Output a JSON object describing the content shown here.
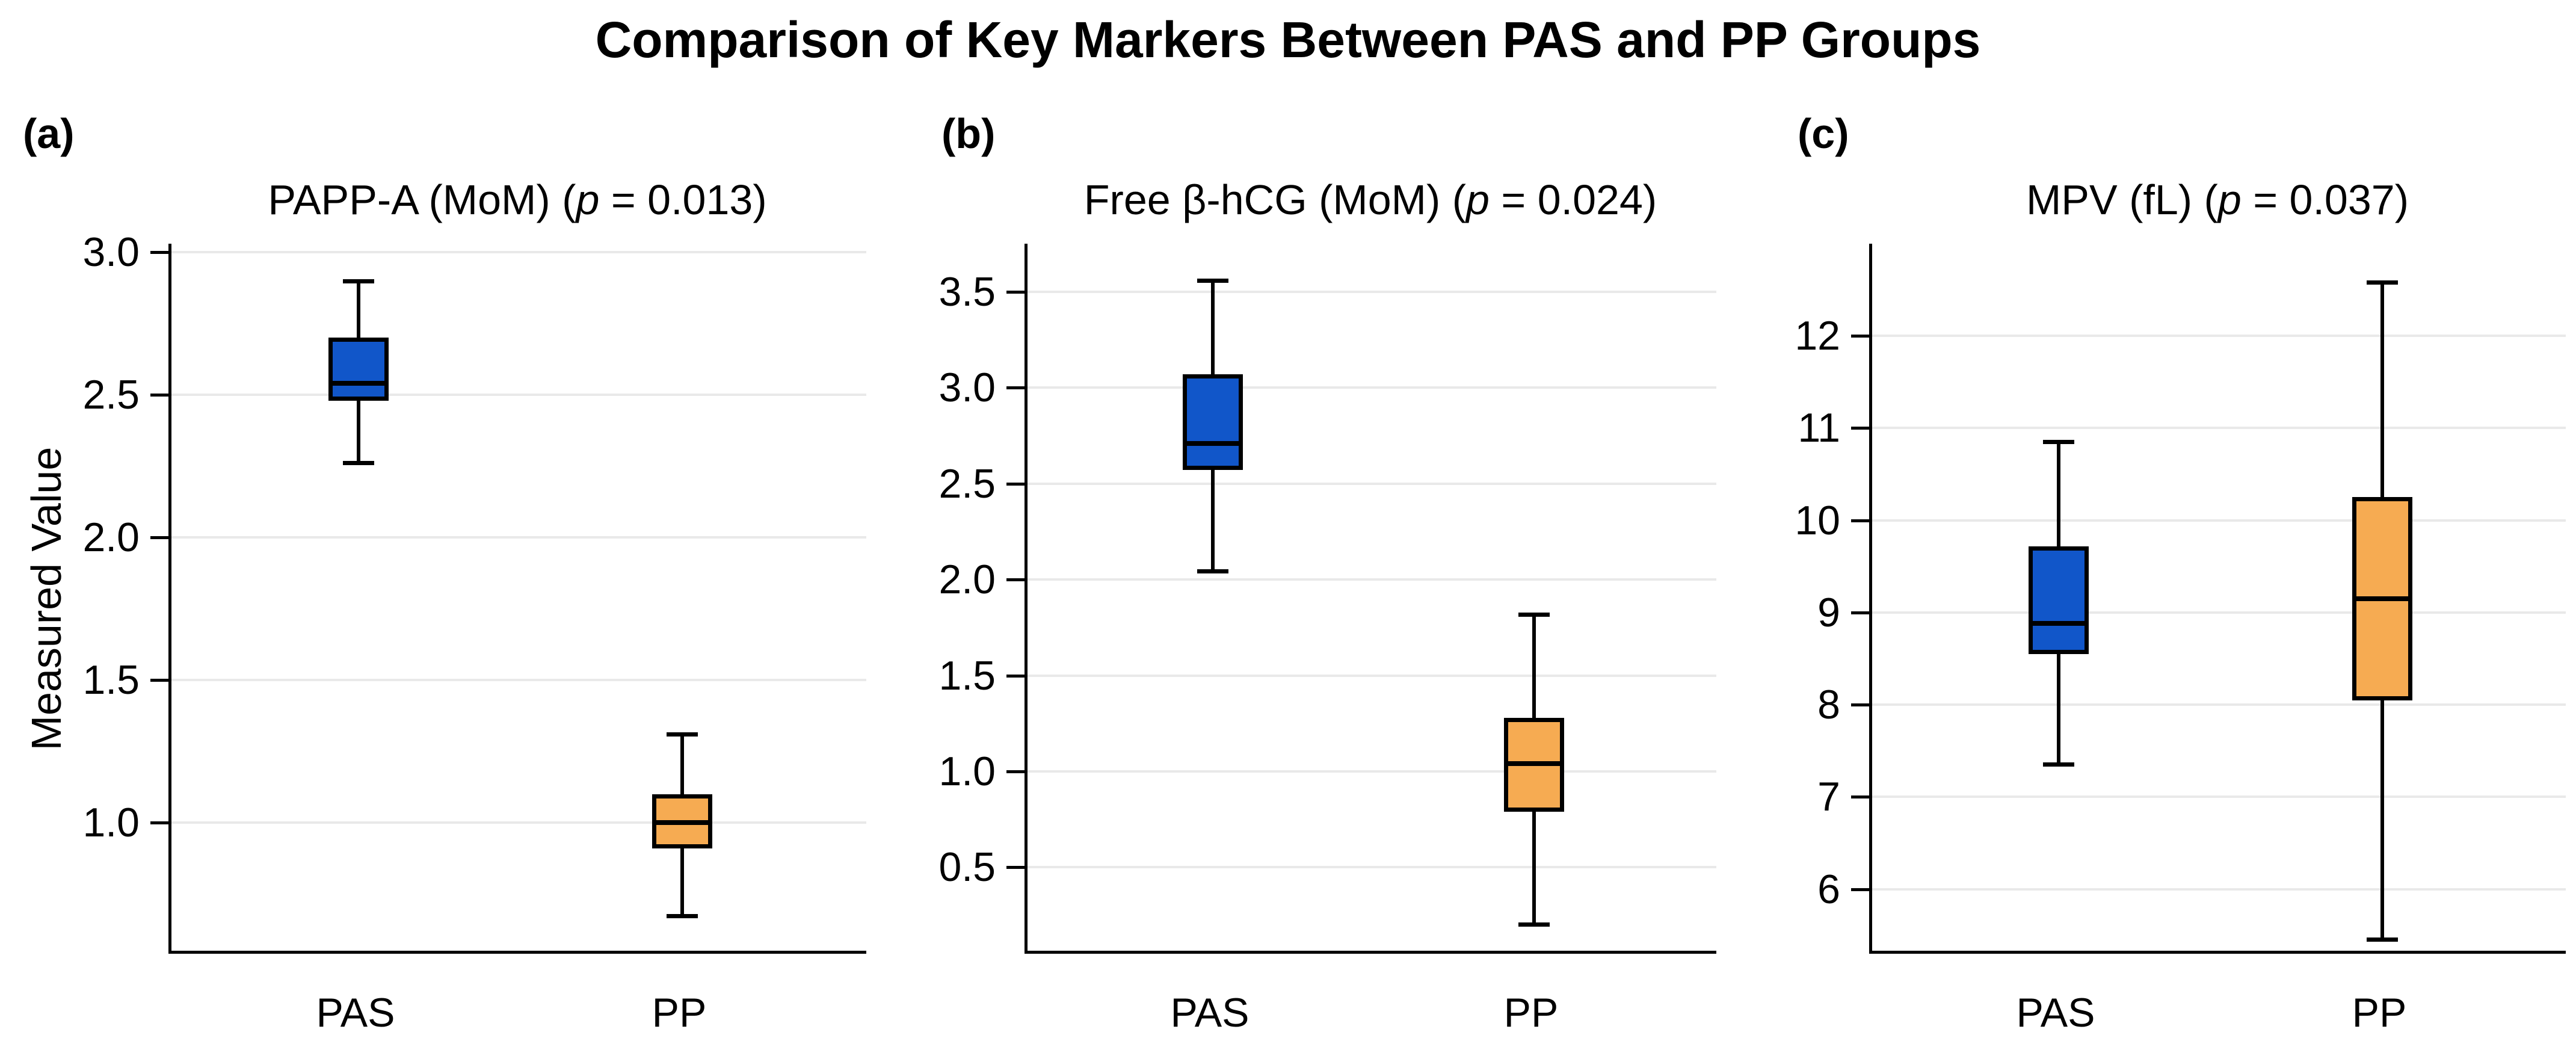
{
  "figure": {
    "title": "Comparison of Key Markers Between PAS and PP Groups",
    "ylabel": "Measured Value",
    "categories": [
      "PAS",
      "PP"
    ],
    "background": "#ffffff"
  },
  "colors": {
    "pas_box": "#1156c9",
    "pp_box": "#f6ab52",
    "gridline": "#e9e9e9",
    "axis": "#000000",
    "text": "#000000"
  },
  "chart_data": [
    {
      "type": "box",
      "panel_label": "(a)",
      "title_prefix": "PAPP-A (MoM) (",
      "title_p": "p",
      "title_suffix": " = 0.013)",
      "p_value": 0.013,
      "categories": [
        "PAS",
        "PP"
      ],
      "ylabel": "Measured Value",
      "ylim": [
        0.54,
        3.03
      ],
      "yticks": [
        1.0,
        1.5,
        2.0,
        2.5,
        3.0
      ],
      "ytick_labels": [
        "1.0",
        "1.5",
        "2.0",
        "2.5",
        "3.0"
      ],
      "grid": true,
      "legend": "none",
      "series": [
        {
          "name": "PAS",
          "color": "#1156c9",
          "whislo": 2.26,
          "q1": 2.48,
          "med": 2.54,
          "q3": 2.7,
          "whishi": 2.9
        },
        {
          "name": "PP",
          "color": "#f6ab52",
          "whislo": 0.67,
          "q1": 0.91,
          "med": 1.0,
          "q3": 1.1,
          "whishi": 1.31
        }
      ]
    },
    {
      "type": "box",
      "panel_label": "(b)",
      "title_prefix": "Free β-hCG (MoM) (",
      "title_p": "p",
      "title_suffix": " = 0.024)",
      "p_value": 0.024,
      "categories": [
        "PAS",
        "PP"
      ],
      "ylabel": "",
      "ylim": [
        0.05,
        3.75
      ],
      "yticks": [
        0.5,
        1.0,
        1.5,
        2.0,
        2.5,
        3.0,
        3.5
      ],
      "ytick_labels": [
        "0.5",
        "1.0",
        "1.5",
        "2.0",
        "2.5",
        "3.0",
        "3.5"
      ],
      "grid": true,
      "legend": "none",
      "series": [
        {
          "name": "PAS",
          "color": "#1156c9",
          "whislo": 2.04,
          "q1": 2.57,
          "med": 2.71,
          "q3": 3.07,
          "whishi": 3.56
        },
        {
          "name": "PP",
          "color": "#f6ab52",
          "whislo": 0.2,
          "q1": 0.79,
          "med": 1.04,
          "q3": 1.28,
          "whishi": 1.82
        }
      ]
    },
    {
      "type": "box",
      "panel_label": "(c)",
      "title_prefix": "MPV (fL) (",
      "title_p": "p",
      "title_suffix": " = 0.037)",
      "p_value": 0.037,
      "categories": [
        "PAS",
        "PP"
      ],
      "ylabel": "",
      "ylim": [
        5.3,
        13.0
      ],
      "yticks": [
        6,
        7,
        8,
        9,
        10,
        11,
        12
      ],
      "ytick_labels": [
        "6",
        "7",
        "8",
        "9",
        "10",
        "11",
        "12"
      ],
      "grid": true,
      "legend": "none",
      "series": [
        {
          "name": "PAS",
          "color": "#1156c9",
          "whislo": 7.35,
          "q1": 8.55,
          "med": 8.88,
          "q3": 9.72,
          "whishi": 10.85
        },
        {
          "name": "PP",
          "color": "#f6ab52",
          "whislo": 5.45,
          "q1": 8.05,
          "med": 9.15,
          "q3": 10.25,
          "whishi": 12.58
        }
      ]
    }
  ]
}
